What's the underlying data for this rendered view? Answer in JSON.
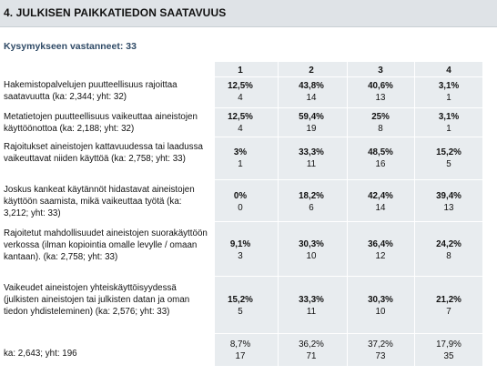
{
  "title": "4. JULKISEN PAIKKATIEDON SAATAVUUS",
  "respondents": "Kysymykseen vastanneet: 33",
  "columns": [
    "1",
    "2",
    "3",
    "4"
  ],
  "rows": [
    {
      "label": "Hakemistopalvelujen puutteellisuus rajoittaa saatavuutta (ka: 2,344; yht: 32)",
      "cells": [
        [
          "12,5%",
          "4"
        ],
        [
          "43,8%",
          "14"
        ],
        [
          "40,6%",
          "13"
        ],
        [
          "3,1%",
          "1"
        ]
      ]
    },
    {
      "label": "Metatietojen puutteellisuus vaikeuttaa aineistojen käyttöönottoa (ka: 2,188; yht: 32)",
      "cells": [
        [
          "12,5%",
          "4"
        ],
        [
          "59,4%",
          "19"
        ],
        [
          "25%",
          "8"
        ],
        [
          "3,1%",
          "1"
        ]
      ]
    },
    {
      "label": "Rajoitukset aineistojen kattavuudessa tai laadussa vaikeuttavat niiden käyttöä (ka: 2,758; yht: 33)",
      "cells": [
        [
          "3%",
          "1"
        ],
        [
          "33,3%",
          "11"
        ],
        [
          "48,5%",
          "16"
        ],
        [
          "15,2%",
          "5"
        ]
      ]
    },
    {
      "label": "Joskus kankeat käytännöt hidastavat aineistojen käyttöön saamista, mikä vaikeuttaa työtä (ka: 3,212; yht: 33)",
      "cells": [
        [
          "0%",
          "0"
        ],
        [
          "18,2%",
          "6"
        ],
        [
          "42,4%",
          "14"
        ],
        [
          "39,4%",
          "13"
        ]
      ]
    },
    {
      "label": "Rajoitetut mahdollisuudet aineistojen suorakäyttöön verkossa (ilman kopiointia omalle levylle / omaan kantaan). (ka: 2,758; yht: 33)",
      "cells": [
        [
          "9,1%",
          "3"
        ],
        [
          "30,3%",
          "10"
        ],
        [
          "36,4%",
          "12"
        ],
        [
          "24,2%",
          "8"
        ]
      ]
    },
    {
      "label": "Vaikeudet aineistojen yhteiskäyttöisyydessä (julkisten aineistojen tai julkisten datan ja oman tiedon yhdisteleminen) (ka: 2,576; yht: 33)",
      "cells": [
        [
          "15,2%",
          "5"
        ],
        [
          "33,3%",
          "11"
        ],
        [
          "30,3%",
          "10"
        ],
        [
          "21,2%",
          "7"
        ]
      ]
    }
  ],
  "footer": {
    "label": "ka: 2,643; yht: 196",
    "cells": [
      [
        "8,7%",
        "17"
      ],
      [
        "36,2%",
        "71"
      ],
      [
        "37,2%",
        "73"
      ],
      [
        "17,9%",
        "35"
      ]
    ]
  }
}
